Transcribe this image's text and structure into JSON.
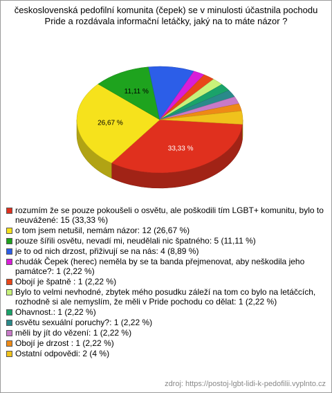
{
  "chart_data": {
    "type": "pie3d",
    "title": "československá pedofilní komunita (čepek) se v minulosti účastnila pochodu Pride a rozdávala informační letáčky, jaký na to máte názor ?",
    "categories": [
      "rozumím že se pouze pokoušeli o osvětu, ale poškodili tím LGBT+ komunitu, bylo to neuvážené: 15 (33,33 %)",
      "o tom jsem netušil, nemám názor: 12 (26,67 %)",
      "pouze šířili osvětu, nevadí mi, neudělali nic špatného: 5 (11,11 %)",
      "je to od nich drzost, přiživují se na nás: 4 (8,89 %)",
      "chudák Čepek (herec) neměla by se ta banda přejmenovat, aby neškodila jeho památce?: 1 (2,22 %)",
      "Obojí je špatně : 1 (2,22 %)",
      "Bylo to velmi nevhodné, zbytek mého posudku záleží na tom co bylo na letáčcích, rozhodně si ale nemyslím, že měli v Pride pochodu co dělat: 1 (2,22 %)",
      "Ohavnost.: 1 (2,22 %)",
      "osvětu sexuální poruchy?: 1 (2,22 %)",
      "měli by jít do vězení: 1 (2,22 %)",
      "Obojí je drzost : 1 (2,22 %)",
      "Ostatní odpovědi: 2 (4 %)"
    ],
    "values": [
      33.33,
      26.67,
      11.11,
      8.89,
      2.22,
      2.22,
      2.22,
      2.22,
      2.22,
      2.22,
      2.22,
      4
    ],
    "value_labels": [
      "33,33 %",
      "26,67 %",
      "11,11 %",
      null,
      null,
      null,
      null,
      null,
      null,
      null,
      null,
      null
    ],
    "colors": [
      "#e0301e",
      "#f6e21c",
      "#1ea31e",
      "#2c5ee8",
      "#d81ed8",
      "#e84618",
      "#c8f27a",
      "#1aa36a",
      "#2a8a8a",
      "#c87ac8",
      "#ee8a16",
      "#f0c21c"
    ],
    "source": "zdroj: https://postoj-lgbt-lidi-k-pedofilii.vyplnto.cz"
  }
}
